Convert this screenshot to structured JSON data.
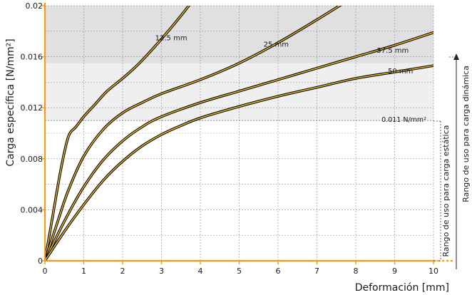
{
  "colors": {
    "axis": "#f29a1a",
    "curve_outline": "#000000",
    "curve_fill": "#f5c518",
    "band_dark": "#e0e0e2",
    "band_light": "#efeff0",
    "grid": "#9a9a9a"
  },
  "chart_data": {
    "type": "line",
    "xlabel": "Deformación [mm]",
    "ylabel": "Carga específica [N/mm²]",
    "xlim": [
      0,
      10
    ],
    "ylim": [
      0,
      0.02
    ],
    "x_ticks": [
      "0",
      "1",
      "2",
      "3",
      "4",
      "5",
      "6",
      "7",
      "8",
      "9",
      "10"
    ],
    "y_ticks": [
      "0",
      "0.004",
      "0.008",
      "0.012",
      "0.016",
      "0.02"
    ],
    "grid": true,
    "bands": [
      {
        "from": 0.011,
        "to": 0.0155,
        "shade": "light"
      },
      {
        "from": 0.0155,
        "to": 0.021,
        "shade": "dark"
      }
    ],
    "threshold": {
      "label": "0.011 N/mm²",
      "value": 0.011
    },
    "ranges": {
      "static": "Rango de uso para carga estática",
      "dynamic": "Rango de uso para carga dinámica"
    },
    "series": [
      {
        "name": "12.5 mm",
        "x": [
          0,
          0.2,
          0.4,
          0.6,
          0.8,
          1.0,
          1.3,
          1.6,
          2.0,
          2.4,
          2.8,
          3.2,
          3.6,
          4.0
        ],
        "y": [
          0,
          0.0035,
          0.007,
          0.0097,
          0.0105,
          0.0113,
          0.0123,
          0.0133,
          0.0143,
          0.0154,
          0.0167,
          0.0181,
          0.0196,
          0.0212
        ],
        "label_at": [
          3.25,
          0.0173
        ]
      },
      {
        "name": "25 mm",
        "x": [
          0,
          0.3,
          0.6,
          1.0,
          1.5,
          2.0,
          2.5,
          3.0,
          4.0,
          5.0,
          6.0,
          7.0,
          8.0
        ],
        "y": [
          0,
          0.0028,
          0.0055,
          0.0082,
          0.0103,
          0.0116,
          0.0124,
          0.0131,
          0.0142,
          0.0155,
          0.0171,
          0.0189,
          0.0208
        ],
        "label_at": [
          5.95,
          0.0168
        ]
      },
      {
        "name": "37.5 mm",
        "x": [
          0,
          0.5,
          1.0,
          1.5,
          2.0,
          2.5,
          3.0,
          4.0,
          5.0,
          6.0,
          7.0,
          8.0,
          9.0,
          10.0
        ],
        "y": [
          0,
          0.0031,
          0.0058,
          0.0079,
          0.0094,
          0.0105,
          0.0113,
          0.0124,
          0.0133,
          0.0142,
          0.0151,
          0.016,
          0.0169,
          0.0179
        ],
        "label_at": [
          8.95,
          0.0163
        ]
      },
      {
        "name": "50 mm",
        "x": [
          0,
          0.5,
          1.0,
          1.5,
          2.0,
          2.5,
          3.0,
          3.5,
          4.0,
          5.0,
          6.0,
          7.0,
          8.0,
          9.0,
          10.0
        ],
        "y": [
          0,
          0.0023,
          0.0044,
          0.0063,
          0.0078,
          0.009,
          0.0099,
          0.0106,
          0.0112,
          0.0121,
          0.0129,
          0.0136,
          0.0143,
          0.0148,
          0.0153
        ],
        "label_at": [
          9.15,
          0.0147
        ]
      }
    ]
  }
}
